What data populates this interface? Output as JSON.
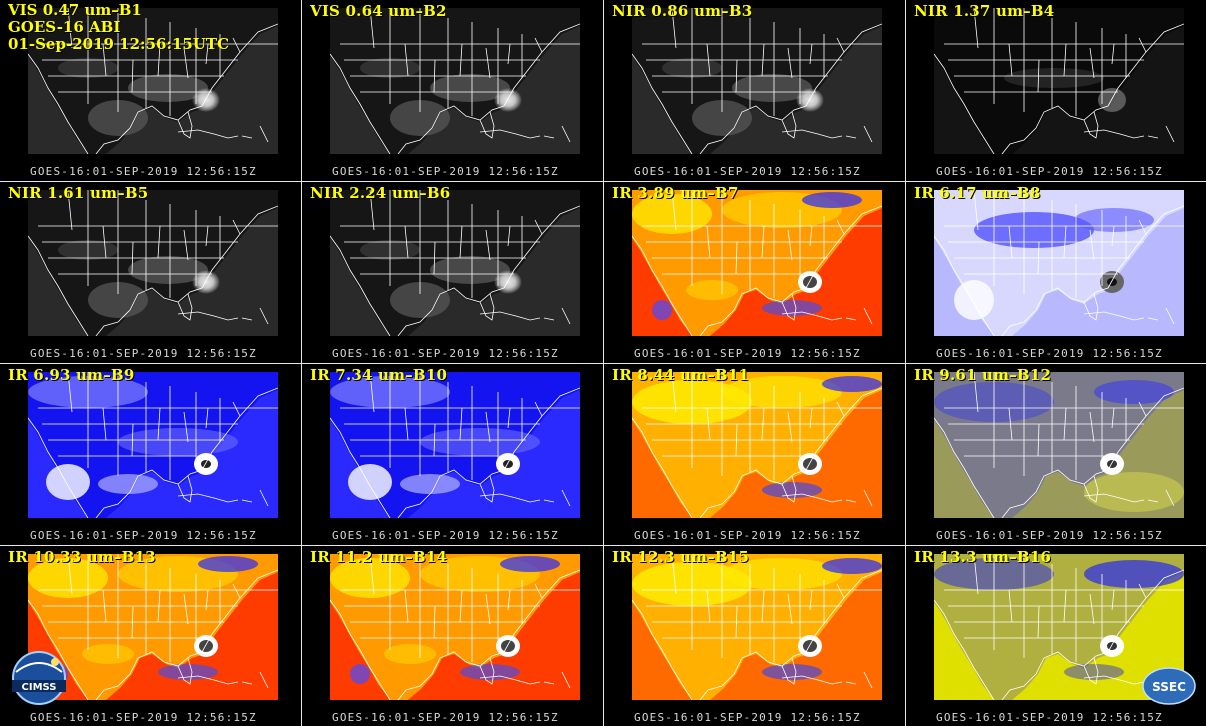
{
  "header": {
    "line1": "VIS 0.47 um–B1",
    "line2": "GOES-16 ABI",
    "line3": "01-Sep-2019 12:56:15UTC"
  },
  "timestamp": "GOES-16:01-SEP-2019 12:56:15Z",
  "panels": [
    {
      "label": "VIS 0.47 um–B1",
      "palette": "gray"
    },
    {
      "label": "VIS 0.64 um–B2",
      "palette": "gray"
    },
    {
      "label": "NIR 0.86 um–B3",
      "palette": "gray"
    },
    {
      "label": "NIR 1.37 um–B4",
      "palette": "dark"
    },
    {
      "label": "NIR 1.61 um–B5",
      "palette": "gray"
    },
    {
      "label": "NIR 2.24 um–B6",
      "palette": "gray"
    },
    {
      "label": "IR 3.89 um–B7",
      "palette": "hot"
    },
    {
      "label": "IR 6.17 um–B8",
      "palette": "wv-light"
    },
    {
      "label": "IR 6.93 um–B9",
      "palette": "wv-blue"
    },
    {
      "label": "IR 7.34 um–B10",
      "palette": "wv-blue"
    },
    {
      "label": "IR 8.44 um–B11",
      "palette": "warm"
    },
    {
      "label": "IR 9.61 um–B12",
      "palette": "ozone"
    },
    {
      "label": "IR 10.33 um–B13",
      "palette": "hot"
    },
    {
      "label": "IR 11.2 um–B14",
      "palette": "hot"
    },
    {
      "label": "IR 12.3 um–B15",
      "palette": "warm"
    },
    {
      "label": "IR 13.3 um–B16",
      "palette": "co2"
    }
  ],
  "logos": {
    "left": "CIMSS",
    "right": "SSEC"
  },
  "colors": {
    "label": "#ffff00",
    "map_lines": "#ffffff",
    "background": "#000000"
  }
}
